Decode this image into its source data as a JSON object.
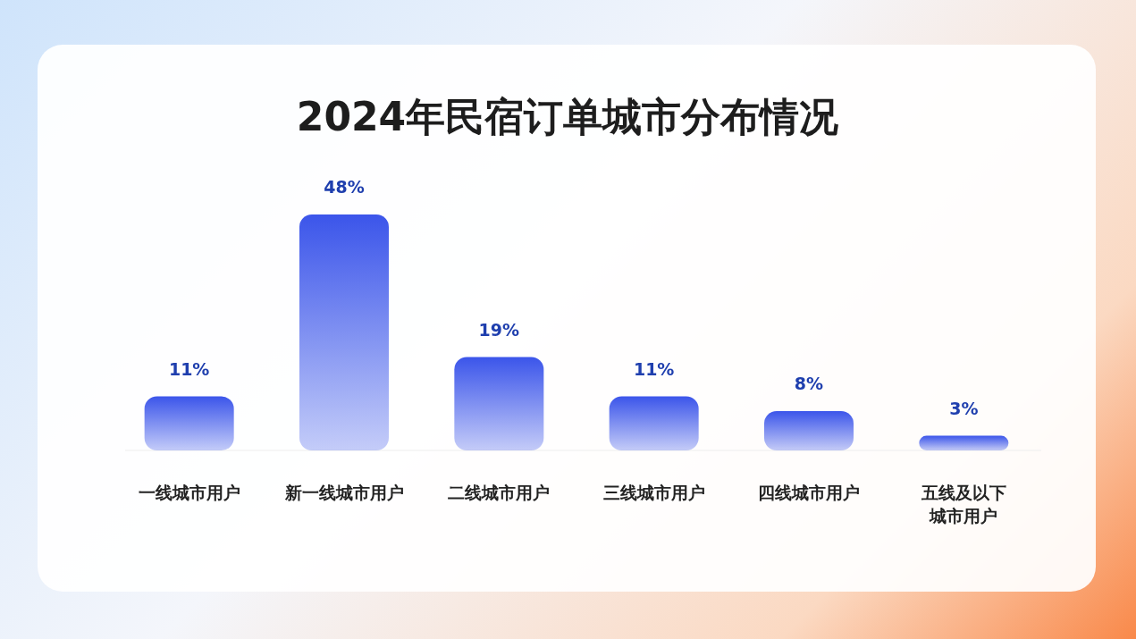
{
  "chart_data": {
    "type": "bar",
    "title": "2024年民宿订单城市分布情况",
    "categories": [
      "一线城市用户",
      "新一线城市用户",
      "二线城市用户",
      "三线城市用户",
      "四线城市用户",
      "五线及以下城市用户"
    ],
    "values": [
      11,
      48,
      19,
      11,
      8,
      3
    ],
    "value_labels": [
      "11%",
      "48%",
      "19%",
      "11%",
      "8%",
      "3%"
    ],
    "color": "#3b55ea"
  }
}
